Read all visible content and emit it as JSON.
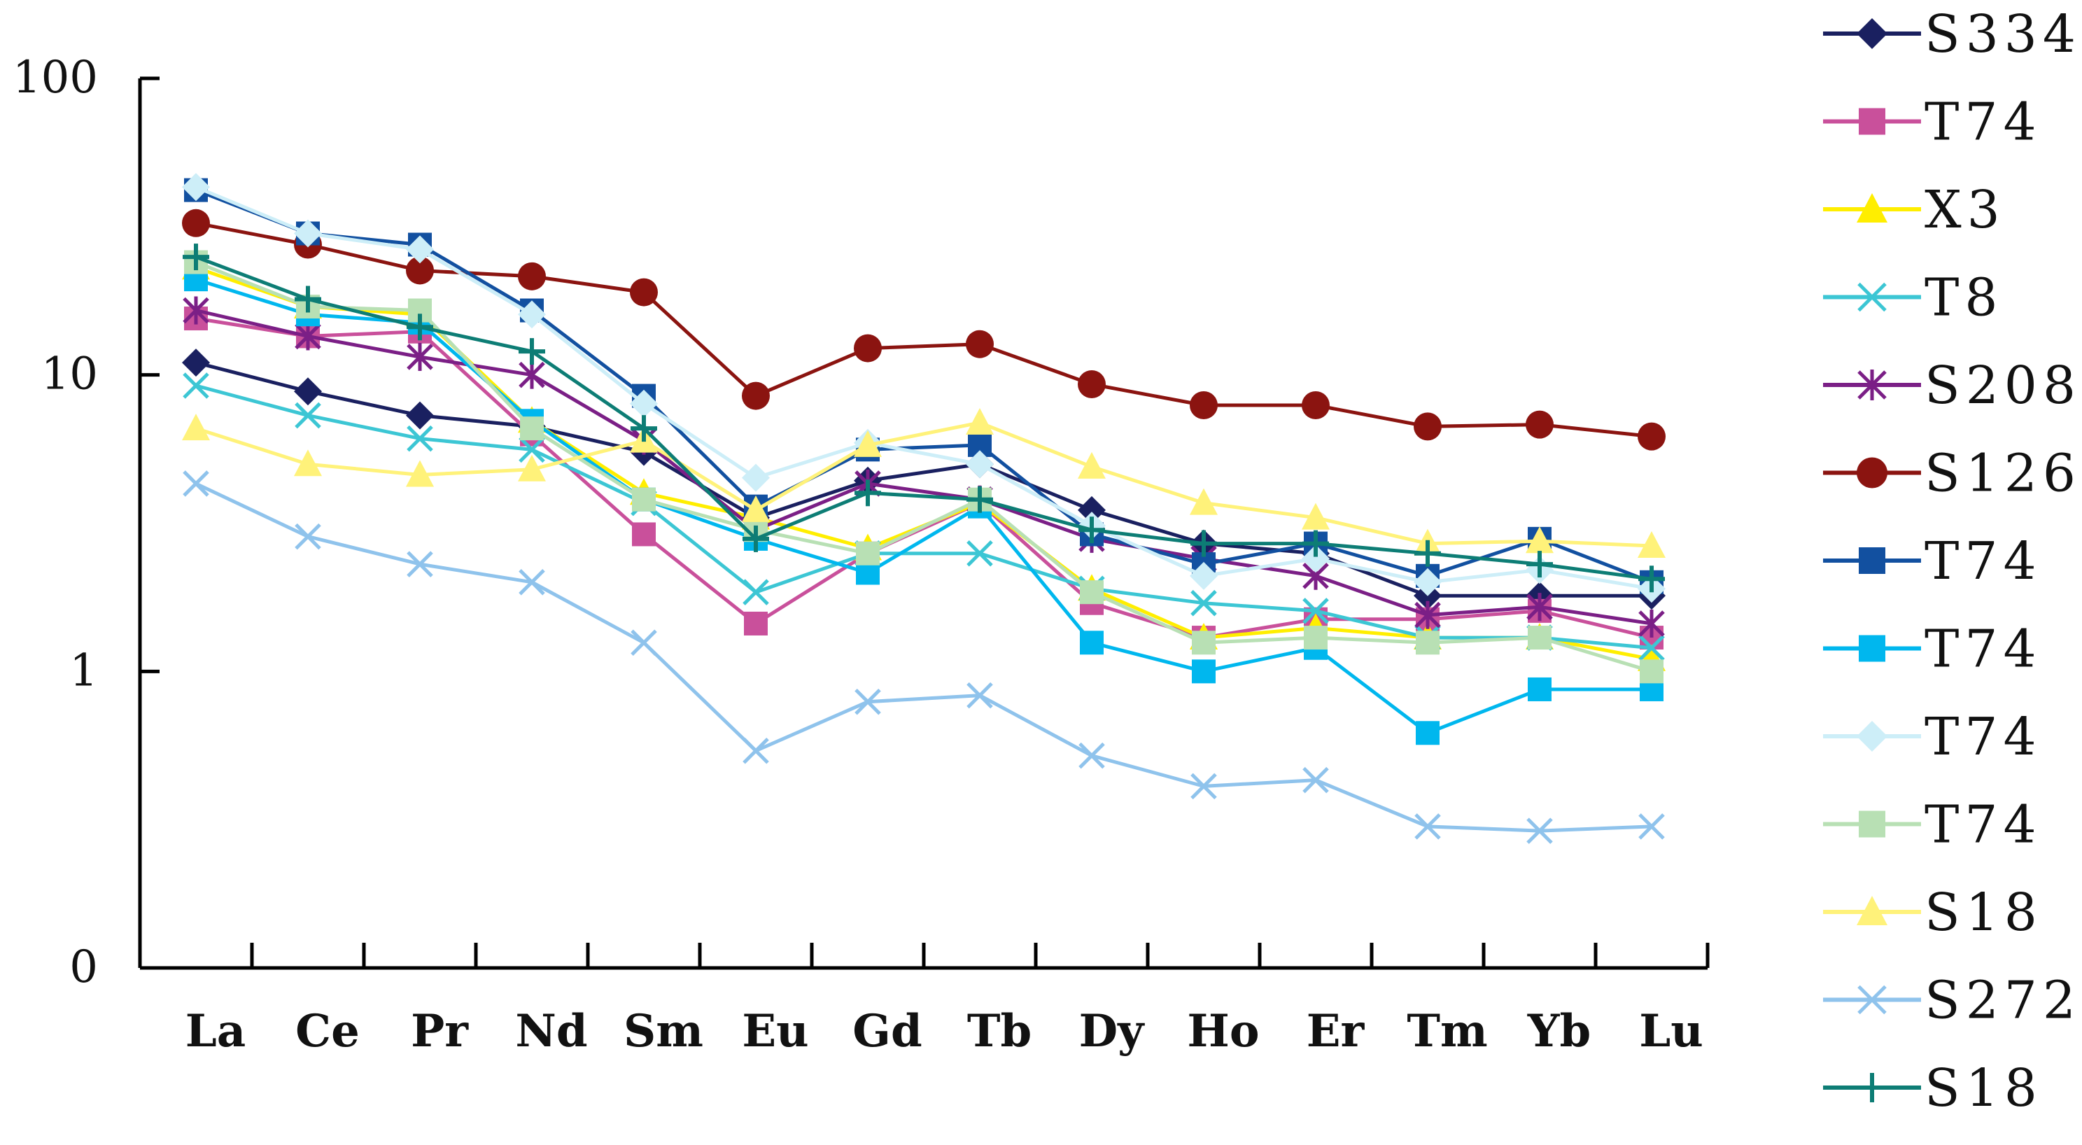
{
  "chart_data": {
    "type": "line",
    "title": "",
    "xlabel": "",
    "ylabel": "",
    "yscale": "log",
    "ylim": [
      0.1,
      100
    ],
    "yticks": [
      {
        "value": 0.1,
        "label": "0"
      },
      {
        "value": 1,
        "label": "1"
      },
      {
        "value": 10,
        "label": "10"
      },
      {
        "value": 100,
        "label": "100"
      }
    ],
    "categories": [
      "La",
      "Ce",
      "Pr",
      "Nd",
      "Sm",
      "Eu",
      "Gd",
      "Tb",
      "Dy",
      "Ho",
      "Er",
      "Tm",
      "Yb",
      "Lu"
    ],
    "legend_position": "right",
    "series": [
      {
        "name": "S334",
        "color": "#1a2060",
        "marker": "diamond",
        "values": [
          11.0,
          8.8,
          7.3,
          6.7,
          5.5,
          3.3,
          4.4,
          5.0,
          3.5,
          2.7,
          2.5,
          1.8,
          1.8,
          1.8
        ]
      },
      {
        "name": "T74",
        "color": "#c9509b",
        "marker": "square",
        "values": [
          15.5,
          13.5,
          14.0,
          6.3,
          2.9,
          1.45,
          2.5,
          3.7,
          1.7,
          1.3,
          1.5,
          1.5,
          1.6,
          1.3
        ]
      },
      {
        "name": "X3",
        "color": "#ffee00",
        "marker": "triangle",
        "values": [
          23.0,
          17.0,
          16.0,
          7.0,
          4.0,
          3.3,
          2.6,
          3.7,
          1.9,
          1.3,
          1.4,
          1.3,
          1.3,
          1.1
        ]
      },
      {
        "name": "T8",
        "color": "#3cc6d4",
        "marker": "x",
        "values": [
          9.2,
          7.3,
          6.1,
          5.6,
          3.7,
          1.85,
          2.5,
          2.5,
          1.9,
          1.7,
          1.6,
          1.3,
          1.3,
          1.2
        ]
      },
      {
        "name": "S208",
        "color": "#7b1f86",
        "marker": "star",
        "values": [
          16.5,
          13.5,
          11.5,
          10.0,
          6.0,
          3.0,
          4.3,
          3.8,
          2.8,
          2.4,
          2.1,
          1.55,
          1.65,
          1.45
        ]
      },
      {
        "name": "S126",
        "color": "#8b1410",
        "marker": "circle",
        "values": [
          32.5,
          27.5,
          22.5,
          21.5,
          19.0,
          8.5,
          12.3,
          12.7,
          9.3,
          7.9,
          7.9,
          6.7,
          6.8,
          6.2
        ]
      },
      {
        "name": "T74",
        "color": "#1250a0",
        "marker": "square",
        "values": [
          42.0,
          30.0,
          27.5,
          16.5,
          8.5,
          3.6,
          5.6,
          5.8,
          2.9,
          2.3,
          2.7,
          2.1,
          2.8,
          2.0
        ]
      },
      {
        "name": "T74",
        "color": "#00b7ee",
        "marker": "square",
        "values": [
          21.0,
          16.0,
          15.0,
          7.0,
          3.8,
          2.8,
          2.15,
          3.6,
          1.25,
          1.0,
          1.2,
          0.62,
          0.87,
          0.87
        ]
      },
      {
        "name": "T74",
        "color": "#cdeef8",
        "marker": "diamond",
        "values": [
          43.0,
          30.0,
          26.5,
          16.0,
          8.0,
          4.5,
          5.9,
          5.0,
          3.1,
          2.1,
          2.4,
          2.0,
          2.2,
          1.9
        ]
      },
      {
        "name": "T74",
        "color": "#b8e0b4",
        "marker": "square",
        "values": [
          24.0,
          17.0,
          16.5,
          6.6,
          3.8,
          3.0,
          2.5,
          3.8,
          1.85,
          1.25,
          1.3,
          1.25,
          1.3,
          1.0
        ]
      },
      {
        "name": "S18",
        "color": "#fff27a",
        "marker": "triangle",
        "values": [
          6.6,
          5.0,
          4.6,
          4.8,
          6.0,
          3.5,
          5.8,
          6.9,
          4.9,
          3.7,
          3.3,
          2.7,
          2.75,
          2.65
        ]
      },
      {
        "name": "S272",
        "color": "#8fc3ec",
        "marker": "x",
        "values": [
          4.3,
          2.85,
          2.3,
          2.0,
          1.25,
          0.54,
          0.79,
          0.83,
          0.52,
          0.41,
          0.43,
          0.3,
          0.29,
          0.3
        ]
      },
      {
        "name": "S18",
        "color": "#0d7d75",
        "marker": "plus",
        "values": [
          25.0,
          18.0,
          14.5,
          12.0,
          6.6,
          2.8,
          4.0,
          3.8,
          3.0,
          2.7,
          2.7,
          2.5,
          2.3,
          2.05
        ]
      }
    ]
  }
}
